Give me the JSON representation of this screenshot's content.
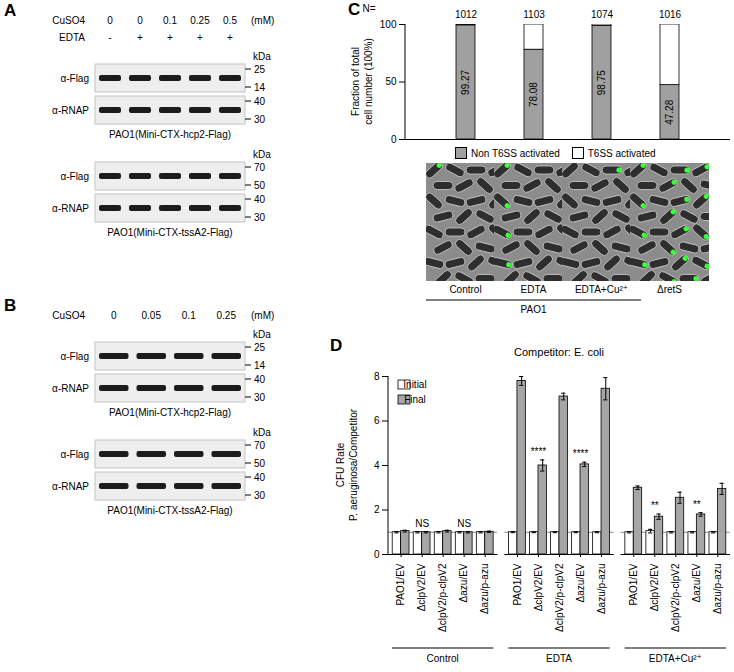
{
  "blots": [
    {
      "panel": "A",
      "conditions": [
        {
          "label": "CuSO4",
          "values": [
            0,
            0,
            0.1,
            0.25,
            0.5
          ],
          "unit": "(mM)"
        },
        {
          "label": "EDTA",
          "values": [
            "-",
            "+",
            "+",
            "+",
            "+"
          ]
        }
      ],
      "marker_unit": "kDa",
      "membranes": [
        {
          "strain": "PAO1(Mini-CTX-hcp2-Flag)",
          "rows": [
            {
              "antibody": "α-Flag",
              "markers": [
                25,
                14
              ]
            },
            {
              "antibody": "α-RNAP",
              "markers": [
                40,
                30
              ]
            }
          ]
        },
        {
          "strain": "PAO1(Mini-CTX-tssA2-Flag)",
          "rows": [
            {
              "antibody": "α-Flag",
              "markers": [
                70,
                50
              ]
            },
            {
              "antibody": "α-RNAP",
              "markers": [
                40,
                30
              ]
            }
          ]
        }
      ]
    },
    {
      "panel": "B",
      "conditions": [
        {
          "label": "CuSO4",
          "values": [
            0,
            0.05,
            0.1,
            0.25
          ],
          "unit": "(mM)"
        }
      ],
      "marker_unit": "kDa",
      "membranes": [
        {
          "strain": "PAO1(Mini-CTX-hcp2-Flag)",
          "rows": [
            {
              "antibody": "α-Flag",
              "markers": [
                25,
                14
              ]
            },
            {
              "antibody": "α-RNAP",
              "markers": [
                40,
                30
              ]
            }
          ]
        },
        {
          "strain": "PAO1(Mini-CTX-tssA2-Flag)",
          "rows": [
            {
              "antibody": "α-Flag",
              "markers": [
                70,
                50
              ]
            },
            {
              "antibody": "α-RNAP",
              "markers": [
                40,
                30
              ]
            }
          ]
        }
      ]
    }
  ],
  "chart_data": [
    {
      "panel": "C",
      "type": "bar",
      "stacked": true,
      "n_label": "N=",
      "n": [
        1012,
        1103,
        1074,
        1016
      ],
      "categories": [
        "Control",
        "EDTA",
        "EDTA+Cu²⁺",
        "ΔretS"
      ],
      "groups": [
        {
          "label": "PAO1",
          "categories": [
            "Control",
            "EDTA",
            "EDTA+Cu²⁺"
          ]
        }
      ],
      "series": [
        {
          "name": "Non T6SS activated",
          "color": "#a0a0a0",
          "values": [
            99.27,
            78.08,
            98.75,
            47.28
          ],
          "data_labels": true
        },
        {
          "name": "T6SS activated",
          "color": "#ffffff",
          "values": [
            0.73,
            21.92,
            1.25,
            52.72
          ]
        }
      ],
      "ylabel": [
        "Fraction of total",
        "cell number (100%)"
      ],
      "ylim": [
        0,
        100
      ],
      "yticks": [
        0,
        50,
        100
      ],
      "tick_labels": "y",
      "legend": "bottom"
    },
    {
      "panel": "D",
      "type": "bar",
      "title": "Competitor: E. coli",
      "ylabel": [
        "CFU Rate",
        "P. aeruginosa/Competitor"
      ],
      "groups": [
        "Control",
        "EDTA",
        "EDTA+Cu²⁺"
      ],
      "categories": [
        "PAO1/EV",
        "ΔclpV2/EV",
        "ΔclpV2/p-clpV2",
        "Δazu/EV",
        "Δazu/p-azu"
      ],
      "series": [
        {
          "name": "Initial",
          "color": "#ffffff",
          "values": [
            [
              1,
              1,
              1,
              1,
              1
            ],
            [
              1,
              1,
              1,
              1,
              1
            ],
            [
              1,
              1.05,
              1,
              1,
              1
            ]
          ],
          "errors": [
            [
              0.03,
              0.03,
              0.03,
              0.03,
              0.03
            ],
            [
              0.02,
              0.02,
              0.02,
              0.02,
              0.02
            ],
            [
              0.03,
              0.08,
              0.03,
              0.03,
              0.03
            ]
          ]
        },
        {
          "name": "Final",
          "color": "#a6a6a6",
          "values": [
            [
              1.05,
              1,
              1.05,
              1,
              1.02
            ],
            [
              7.8,
              4.0,
              7.1,
              4.05,
              7.45
            ],
            [
              3.0,
              1.7,
              2.55,
              1.8,
              2.95
            ]
          ],
          "errors": [
            [
              0.04,
              0.03,
              0.04,
              0.03,
              0.03
            ],
            [
              0.2,
              0.25,
              0.15,
              0.1,
              0.5
            ],
            [
              0.08,
              0.12,
              0.25,
              0.08,
              0.25
            ]
          ]
        }
      ],
      "reference_line": 1,
      "annotations": [
        {
          "group": "Control",
          "category": "ΔclpV2/EV",
          "text": "NS"
        },
        {
          "group": "Control",
          "category": "Δazu/EV",
          "text": "NS"
        },
        {
          "group": "EDTA",
          "category": "ΔclpV2/EV",
          "text": "****"
        },
        {
          "group": "EDTA",
          "category": "Δazu/EV",
          "text": "****"
        },
        {
          "group": "EDTA+Cu²⁺",
          "category": "ΔclpV2/EV",
          "text": "**"
        },
        {
          "group": "EDTA+Cu²⁺",
          "category": "Δazu/EV",
          "text": "**"
        }
      ],
      "ylim": [
        0,
        8
      ],
      "yticks": [
        0,
        2,
        4,
        6,
        8
      ],
      "legend": "top-left"
    }
  ]
}
